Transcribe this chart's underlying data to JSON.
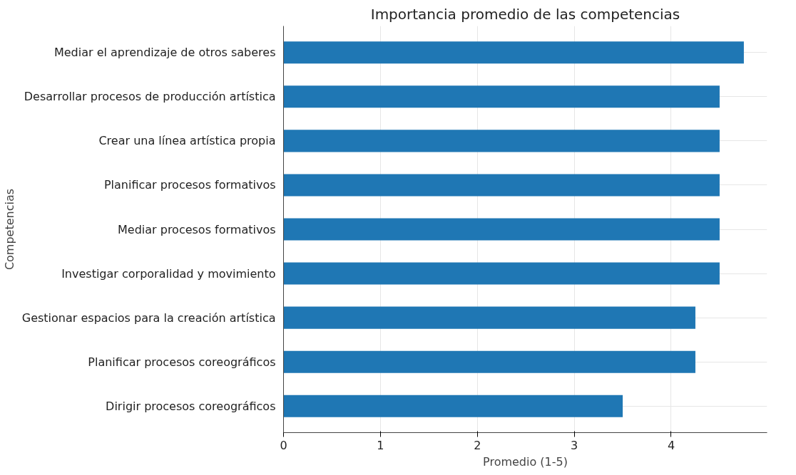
{
  "chart_data": {
    "type": "bar",
    "orientation": "horizontal",
    "title": "Importancia promedio de las competencias",
    "xlabel": "Promedio (1-5)",
    "ylabel": "Competencias",
    "categories": [
      "Mediar el aprendizaje de otros saberes",
      "Desarrollar procesos de producción artística",
      "Crear una línea artística propia",
      "Planificar procesos formativos",
      "Mediar procesos formativos",
      "Investigar corporalidad y movimiento",
      "Gestionar espacios para la creación artística",
      "Planificar procesos coreográficos",
      "Dirigir procesos coreográficos"
    ],
    "values": [
      4.75,
      4.5,
      4.5,
      4.5,
      4.5,
      4.5,
      4.25,
      4.25,
      3.5
    ],
    "color": "#1f77b4",
    "xlim": [
      0,
      4.99
    ],
    "xticks": [
      0,
      1,
      2,
      3,
      4
    ],
    "grid": true
  }
}
